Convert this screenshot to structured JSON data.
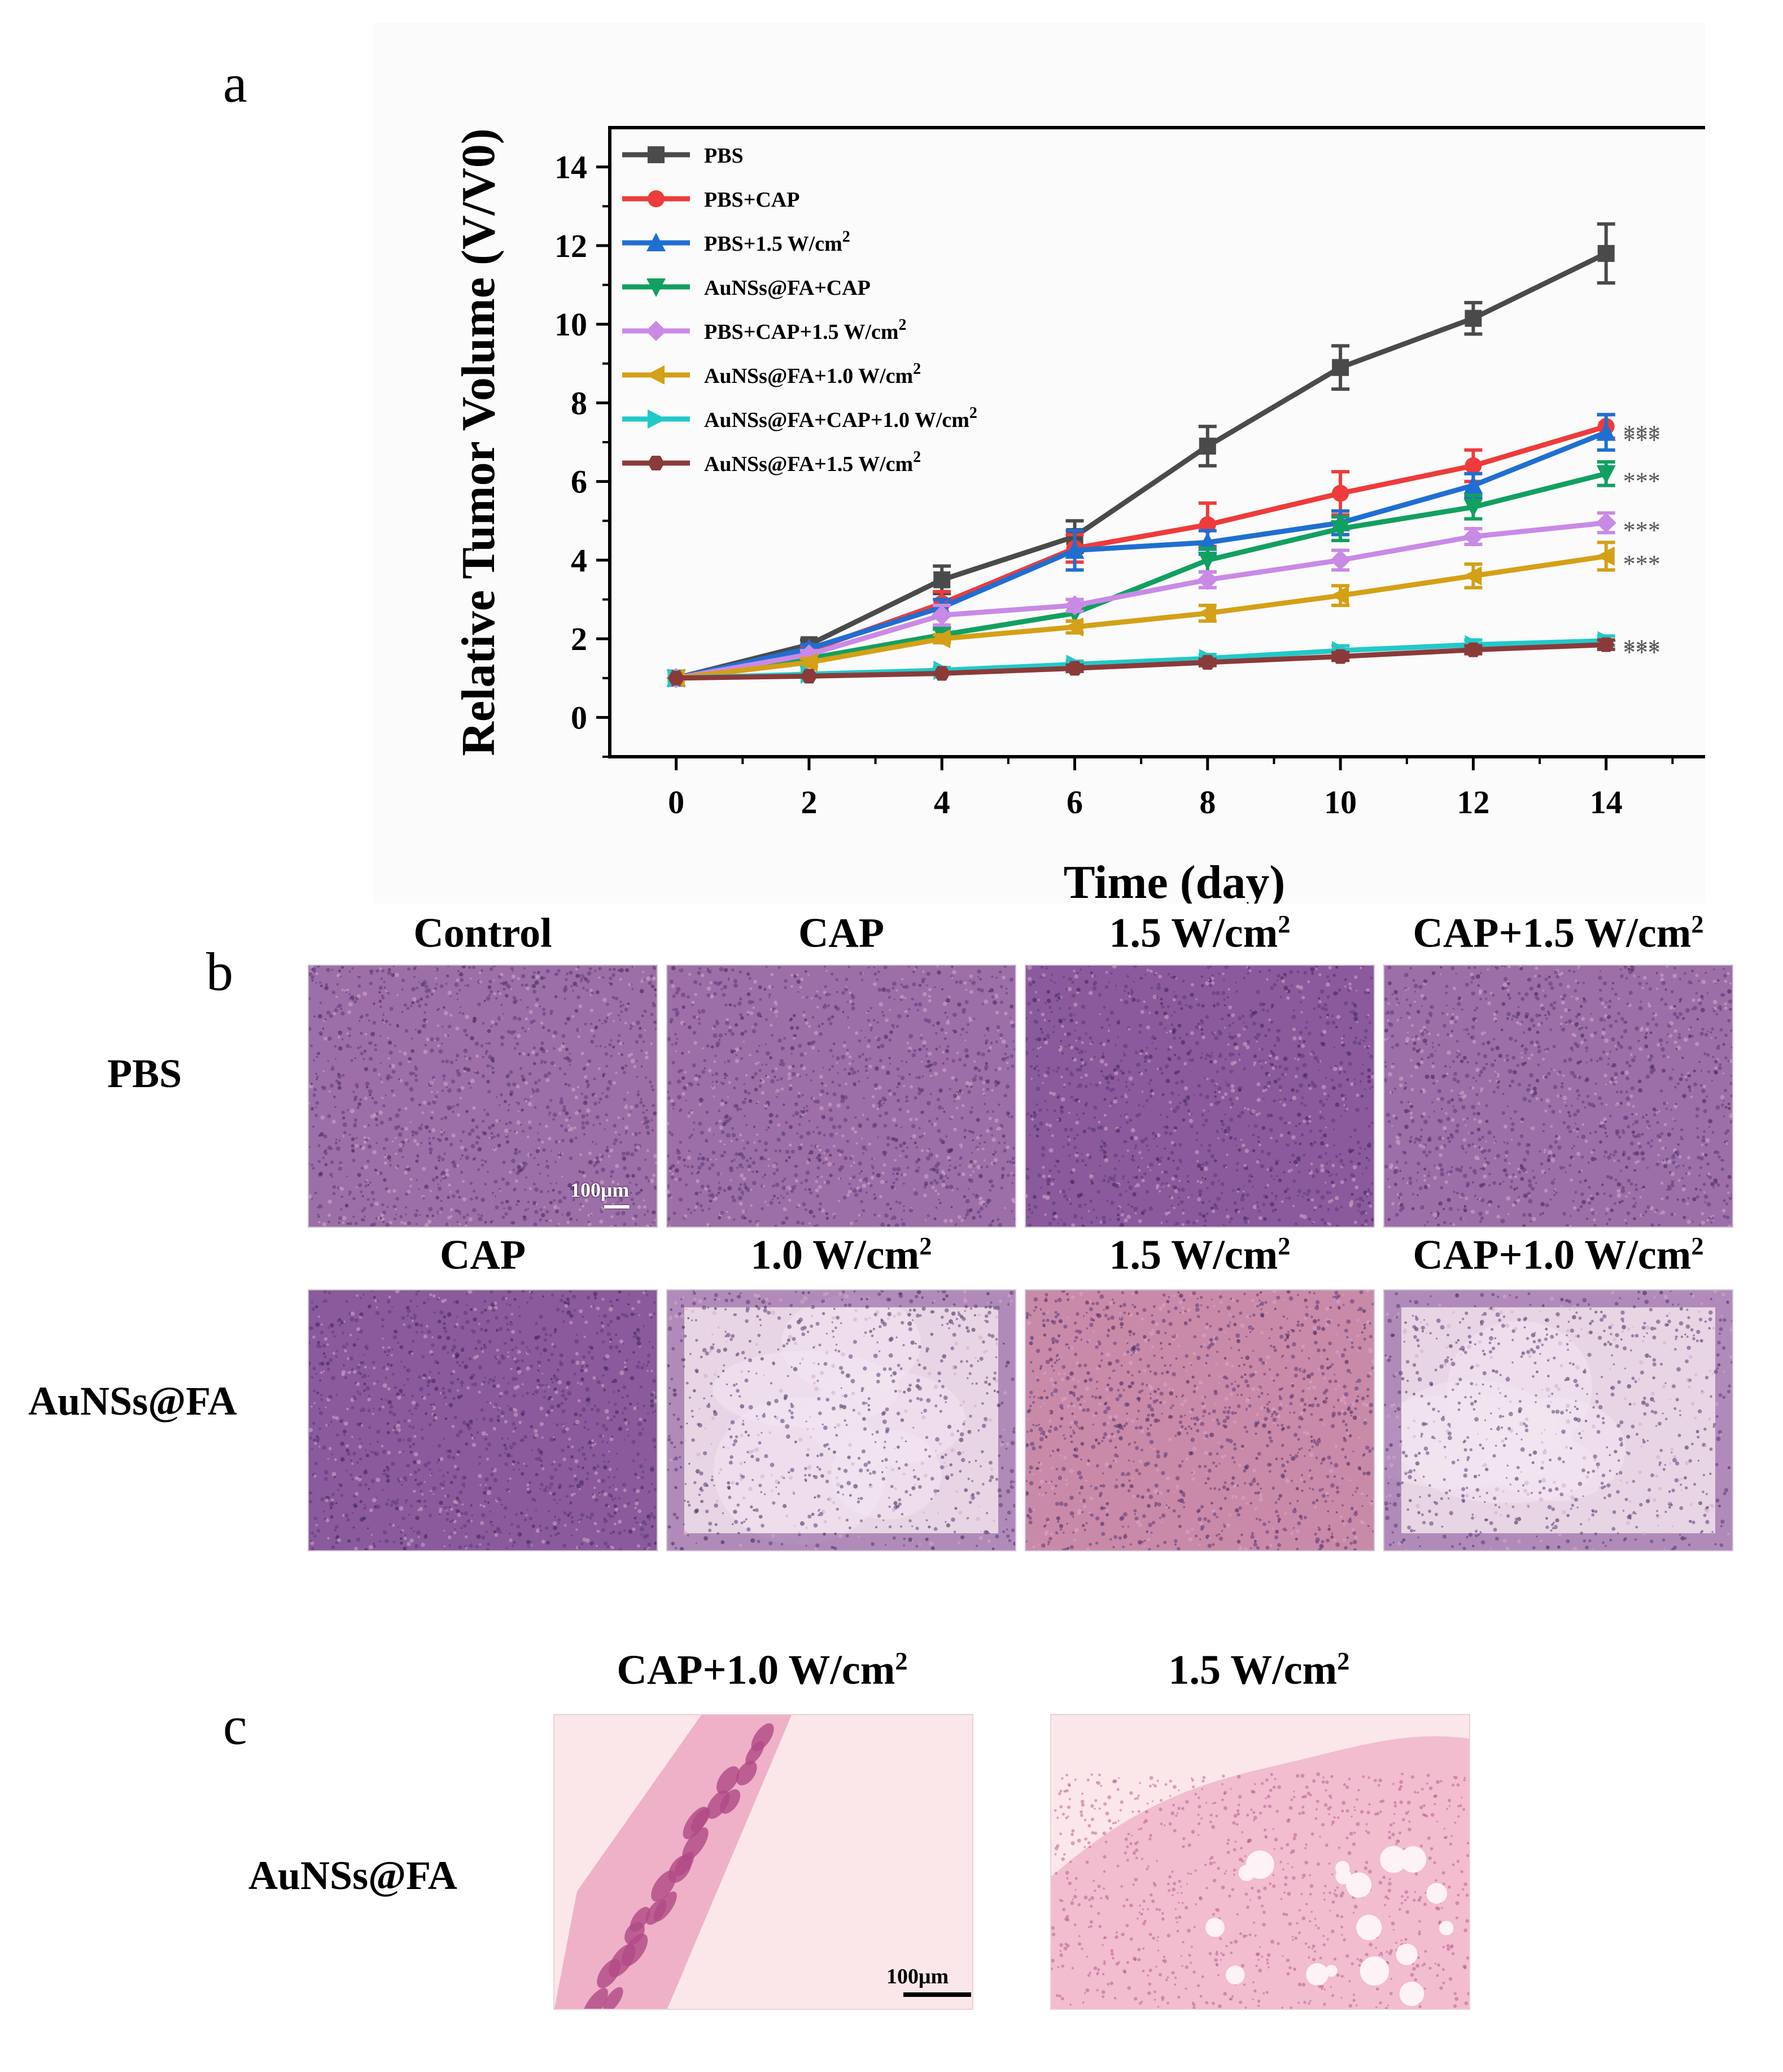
{
  "panel_letters": {
    "a": "a",
    "b": "b",
    "c": "c"
  },
  "chart_data": {
    "type": "line",
    "title": "",
    "xlabel": "Time (day)",
    "ylabel": "Relative Tumor Volume (V/V0)",
    "xlim": [
      -1,
      16
    ],
    "ylim": [
      -1,
      15
    ],
    "xticks": [
      0,
      2,
      4,
      6,
      8,
      10,
      12,
      14,
      16
    ],
    "yticks": [
      0,
      2,
      4,
      6,
      8,
      10,
      12,
      14
    ],
    "legend_position": "top-left",
    "grid": false,
    "significance_label": "***",
    "x": [
      0,
      2,
      4,
      6,
      8,
      10,
      12,
      14
    ],
    "series": [
      {
        "name": "PBS",
        "color": "#4a4a4a",
        "marker": "square",
        "values": [
          1.0,
          1.85,
          3.5,
          4.6,
          6.9,
          8.9,
          10.15,
          11.8
        ],
        "errors": [
          0.05,
          0.12,
          0.35,
          0.4,
          0.5,
          0.55,
          0.4,
          0.75
        ],
        "sig": false
      },
      {
        "name": "PBS+CAP",
        "color": "#ee3b3b",
        "marker": "circle",
        "values": [
          1.0,
          1.7,
          2.9,
          4.3,
          4.9,
          5.7,
          6.4,
          7.4
        ],
        "errors": [
          0.05,
          0.12,
          0.3,
          0.35,
          0.55,
          0.55,
          0.4,
          0.3
        ],
        "sig": true
      },
      {
        "name": "PBS+1.5 W/cm",
        "color": "#1f6fd1",
        "marker": "triangle-up",
        "values": [
          1.0,
          1.75,
          2.8,
          4.25,
          4.45,
          4.95,
          5.9,
          7.25
        ],
        "errors": [
          0.05,
          0.1,
          0.2,
          0.5,
          0.3,
          0.3,
          0.3,
          0.45
        ],
        "sig": true
      },
      {
        "name": "AuNSs@FA+CAP",
        "color": "#12a060",
        "marker": "triangle-down",
        "values": [
          1.0,
          1.5,
          2.1,
          2.65,
          4.0,
          4.8,
          5.35,
          6.2
        ],
        "errors": [
          0.05,
          0.1,
          0.15,
          0.2,
          0.3,
          0.3,
          0.3,
          0.3
        ],
        "sig": true
      },
      {
        "name": "PBS+CAP+1.5 W/cm",
        "color": "#c98ae6",
        "marker": "diamond",
        "values": [
          1.0,
          1.6,
          2.6,
          2.85,
          3.5,
          4.0,
          4.6,
          4.95
        ],
        "errors": [
          0.05,
          0.1,
          0.25,
          0.15,
          0.2,
          0.25,
          0.2,
          0.25
        ],
        "sig": true
      },
      {
        "name": "AuNSs@FA+1.0 W/cm",
        "color": "#d4a017",
        "marker": "triangle-left",
        "values": [
          1.0,
          1.4,
          2.0,
          2.3,
          2.65,
          3.1,
          3.6,
          4.1
        ],
        "errors": [
          0.05,
          0.1,
          0.1,
          0.15,
          0.2,
          0.25,
          0.3,
          0.35
        ],
        "sig": true
      },
      {
        "name": "AuNSs@FA+CAP+1.0 W/cm",
        "color": "#22c9c9",
        "marker": "triangle-right",
        "values": [
          1.0,
          1.1,
          1.2,
          1.35,
          1.5,
          1.7,
          1.85,
          1.95
        ],
        "errors": [
          0.05,
          0.05,
          0.07,
          0.08,
          0.1,
          0.12,
          0.12,
          0.12
        ],
        "sig": true
      },
      {
        "name": "AuNSs@FA+1.5 W/cm",
        "color": "#8b3a3a",
        "marker": "hexagon",
        "values": [
          1.0,
          1.05,
          1.12,
          1.25,
          1.4,
          1.55,
          1.72,
          1.85
        ],
        "errors": [
          0.05,
          0.05,
          0.06,
          0.08,
          0.08,
          0.1,
          0.1,
          0.12
        ],
        "sig": true
      }
    ]
  },
  "sup_2": "2",
  "panel_b": {
    "columns": [
      {
        "text": "Control",
        "sup": ""
      },
      {
        "text": "CAP",
        "sup": ""
      },
      {
        "text": "1.5 W/cm",
        "sup": "2"
      },
      {
        "text": "CAP+1.5 W/cm",
        "sup": "2"
      }
    ],
    "row1_label": "PBS",
    "row2_columns": [
      {
        "text": "CAP",
        "sup": ""
      },
      {
        "text": "1.0 W/cm",
        "sup": "2"
      },
      {
        "text": "1.5 W/cm",
        "sup": "2"
      },
      {
        "text": "CAP+1.0 W/cm",
        "sup": "2"
      }
    ],
    "row2_label": "AuNSs@FA",
    "scale_label": "100μm",
    "tile_colors": {
      "purple": "#9c6fa8",
      "purple_dark": "#8a5a9c",
      "pink": "#c98aa8",
      "pale": "#e8d5e4"
    }
  },
  "panel_c": {
    "columns": [
      {
        "text": "CAP+1.0 W/cm",
        "sup": "2"
      },
      {
        "text": "1.5 W/cm",
        "sup": "2"
      }
    ],
    "row_label": "AuNSs@FA",
    "scale_label": "100μm",
    "tile_colors": {
      "background": "#fbe6ea",
      "tissue": "#ea9ab8",
      "follicle": "#b04a86"
    }
  }
}
